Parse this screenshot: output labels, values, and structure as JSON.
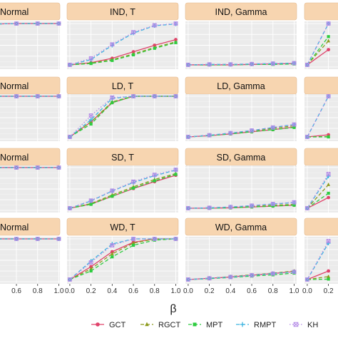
{
  "chart_data": {
    "type": "line",
    "layout": "facet-grid",
    "xlabel": "β",
    "x": [
      0.0,
      0.2,
      0.4,
      0.6,
      0.8,
      1.0
    ],
    "x_ticks": [
      "0.0",
      "0.2",
      "0.4",
      "0.6",
      "0.8",
      "1.0"
    ],
    "x_ticks_partial": [
      "0.6",
      "0.8",
      "1.0"
    ],
    "x_ticks_cut": [
      "0.0",
      "0.2"
    ],
    "ylim": [
      0,
      1
    ],
    "grid": true,
    "legend_position": "bottom",
    "series": [
      {
        "name": "GCT",
        "color": "#e0436b",
        "marker": "circle",
        "line": "solid"
      },
      {
        "name": "RGCT",
        "color": "#8c9a1b",
        "marker": "triangle",
        "line": "dashed"
      },
      {
        "name": "MPT",
        "color": "#2ecc40",
        "marker": "square",
        "line": "dashed"
      },
      {
        "name": "RMPT",
        "color": "#3cb4e0",
        "marker": "plus",
        "line": "dashed"
      },
      {
        "name": "KH",
        "color": "#b48ae6",
        "marker": "boxx",
        "line": "dotted"
      }
    ],
    "rows": [
      {
        "facets": [
          {
            "title": "Normal",
            "series": [
              [
                0.94,
                0.98,
                0.99,
                1,
                1,
                1
              ],
              [
                0.94,
                0.98,
                0.99,
                1,
                1,
                1
              ],
              [
                0.94,
                0.98,
                0.99,
                1,
                1,
                1
              ],
              [
                0.94,
                0.98,
                0.99,
                1,
                1,
                1
              ],
              [
                0.94,
                0.98,
                0.99,
                1,
                1,
                1
              ]
            ]
          },
          {
            "title": "IND, T",
            "series": [
              [
                0.05,
                0.1,
                0.2,
                0.35,
                0.5,
                0.63
              ],
              [
                0.05,
                0.09,
                0.17,
                0.3,
                0.45,
                0.58
              ],
              [
                0.05,
                0.08,
                0.15,
                0.28,
                0.43,
                0.56
              ],
              [
                0.05,
                0.17,
                0.5,
                0.78,
                0.95,
                0.99
              ],
              [
                0.05,
                0.2,
                0.52,
                0.8,
                0.96,
                1
              ]
            ]
          },
          {
            "title": "IND, Gamma",
            "series": [
              [
                0.05,
                0.05,
                0.05,
                0.06,
                0.07,
                0.08
              ],
              [
                0.05,
                0.05,
                0.06,
                0.06,
                0.07,
                0.08
              ],
              [
                0.05,
                0.05,
                0.05,
                0.06,
                0.06,
                0.07
              ],
              [
                0.05,
                0.06,
                0.06,
                0.07,
                0.08,
                0.09
              ],
              [
                0.05,
                0.06,
                0.06,
                0.07,
                0.08,
                0.09
              ]
            ]
          },
          {
            "title": "",
            "series": [
              [
                0.05,
                0.4
              ],
              [
                0.05,
                0.6
              ],
              [
                0.05,
                0.7
              ],
              [
                0.05,
                1
              ],
              [
                0.05,
                1
              ]
            ]
          }
        ]
      },
      {
        "facets": [
          {
            "title": "Normal",
            "series": [
              [
                1,
                1,
                1,
                1,
                1,
                1
              ],
              [
                1,
                1,
                1,
                1,
                1,
                1
              ],
              [
                1,
                1,
                1,
                1,
                1,
                1
              ],
              [
                1,
                1,
                1,
                1,
                1,
                1
              ],
              [
                1,
                1,
                1,
                1,
                1,
                1
              ]
            ]
          },
          {
            "title": "LD, T",
            "series": [
              [
                0.05,
                0.4,
                0.85,
                1,
                1,
                1
              ],
              [
                0.05,
                0.4,
                0.87,
                1,
                1,
                1
              ],
              [
                0.05,
                0.35,
                0.85,
                1,
                1,
                1
              ],
              [
                0.05,
                0.45,
                0.95,
                1,
                1,
                1
              ],
              [
                0.05,
                0.55,
                0.97,
                1,
                1,
                1
              ]
            ]
          },
          {
            "title": "LD, Gamma",
            "series": [
              [
                0.05,
                0.08,
                0.12,
                0.17,
                0.22,
                0.28
              ],
              [
                0.05,
                0.09,
                0.13,
                0.19,
                0.25,
                0.31
              ],
              [
                0.05,
                0.08,
                0.12,
                0.17,
                0.22,
                0.27
              ],
              [
                0.05,
                0.09,
                0.14,
                0.2,
                0.27,
                0.34
              ],
              [
                0.05,
                0.09,
                0.14,
                0.2,
                0.27,
                0.34
              ]
            ]
          },
          {
            "title": "",
            "series": [
              [
                0.05,
                0.1
              ],
              [
                0.05,
                0.06
              ],
              [
                0.05,
                0.05
              ],
              [
                0.05,
                1
              ],
              [
                0.05,
                1
              ]
            ]
          }
        ]
      },
      {
        "facets": [
          {
            "title": "Normal",
            "series": [
              [
                0.96,
                0.99,
                1,
                1,
                1,
                1
              ],
              [
                0.96,
                0.99,
                1,
                1,
                1,
                1
              ],
              [
                0.96,
                0.99,
                1,
                1,
                1,
                1
              ],
              [
                0.96,
                0.99,
                1,
                1,
                1,
                1
              ],
              [
                0.96,
                0.99,
                1,
                1,
                1,
                1
              ]
            ]
          },
          {
            "title": "SD, T",
            "series": [
              [
                0.05,
                0.15,
                0.33,
                0.51,
                0.67,
                0.82
              ],
              [
                0.05,
                0.16,
                0.36,
                0.55,
                0.72,
                0.86
              ],
              [
                0.05,
                0.14,
                0.33,
                0.52,
                0.69,
                0.84
              ],
              [
                0.05,
                0.22,
                0.45,
                0.65,
                0.81,
                0.94
              ],
              [
                0.05,
                0.23,
                0.46,
                0.67,
                0.83,
                0.95
              ]
            ]
          },
          {
            "title": "SD, Gamma",
            "series": [
              [
                0.05,
                0.05,
                0.06,
                0.08,
                0.1,
                0.12
              ],
              [
                0.05,
                0.06,
                0.07,
                0.09,
                0.12,
                0.14
              ],
              [
                0.05,
                0.05,
                0.06,
                0.08,
                0.1,
                0.12
              ],
              [
                0.05,
                0.06,
                0.08,
                0.11,
                0.15,
                0.18
              ],
              [
                0.05,
                0.06,
                0.08,
                0.11,
                0.15,
                0.19
              ]
            ]
          },
          {
            "title": "",
            "series": [
              [
                0.05,
                0.3
              ],
              [
                0.05,
                0.6
              ],
              [
                0.05,
                0.4
              ],
              [
                0.05,
                0.8
              ],
              [
                0.05,
                0.85
              ]
            ]
          }
        ]
      },
      {
        "facets": [
          {
            "title": "Normal",
            "series": [
              [
                1,
                1,
                1,
                1,
                1,
                1
              ],
              [
                1,
                1,
                1,
                1,
                1,
                1
              ],
              [
                1,
                1,
                1,
                1,
                1,
                1
              ],
              [
                1,
                1,
                1,
                1,
                1,
                1
              ],
              [
                1,
                1,
                1,
                1,
                1,
                1
              ]
            ]
          },
          {
            "title": "WD, T",
            "series": [
              [
                0.05,
                0.35,
                0.7,
                0.92,
                1,
                1
              ],
              [
                0.05,
                0.3,
                0.65,
                0.9,
                1,
                1
              ],
              [
                0.05,
                0.25,
                0.58,
                0.85,
                0.97,
                1
              ],
              [
                0.05,
                0.48,
                0.88,
                1,
                1,
                1
              ],
              [
                0.05,
                0.45,
                0.85,
                1,
                1,
                1
              ]
            ]
          },
          {
            "title": "WD, Gamma",
            "series": [
              [
                0.05,
                0.08,
                0.11,
                0.15,
                0.19,
                0.24
              ],
              [
                0.05,
                0.08,
                0.12,
                0.16,
                0.2,
                0.25
              ],
              [
                0.05,
                0.07,
                0.1,
                0.13,
                0.16,
                0.2
              ],
              [
                0.05,
                0.08,
                0.11,
                0.15,
                0.19,
                0.23
              ],
              [
                0.05,
                0.08,
                0.11,
                0.15,
                0.19,
                0.23
              ]
            ]
          },
          {
            "title": "",
            "series": [
              [
                0.05,
                0.25
              ],
              [
                0.05,
                0.12
              ],
              [
                0.05,
                0.06
              ],
              [
                0.05,
                0.9
              ],
              [
                0.05,
                0.95
              ]
            ]
          }
        ]
      }
    ]
  }
}
